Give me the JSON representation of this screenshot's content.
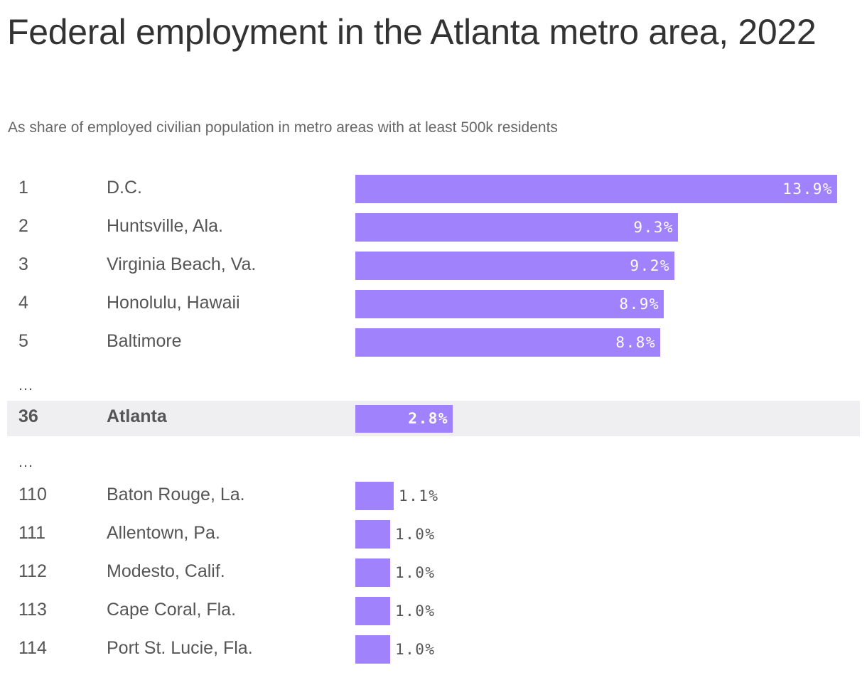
{
  "chart_data": {
    "type": "bar",
    "orientation": "horizontal",
    "title": "Federal employment in the Atlanta metro area, 2022",
    "subtitle": "As share of employed civilian population in metro areas with at least 500k residents",
    "value_suffix": "%",
    "max_value": 13.9,
    "highlight": "Atlanta",
    "ellipsis_label": "…",
    "rows": [
      {
        "rank": "1",
        "name": "D.C.",
        "value": 13.9,
        "label": "13.9%"
      },
      {
        "rank": "2",
        "name": "Huntsville, Ala.",
        "value": 9.3,
        "label": "9.3%"
      },
      {
        "rank": "3",
        "name": "Virginia Beach, Va.",
        "value": 9.2,
        "label": "9.2%"
      },
      {
        "rank": "4",
        "name": "Honolulu, Hawaii",
        "value": 8.9,
        "label": "8.9%"
      },
      {
        "rank": "5",
        "name": "Baltimore",
        "value": 8.8,
        "label": "8.8%"
      },
      {
        "ellipsis": true
      },
      {
        "rank": "36",
        "name": "Atlanta",
        "value": 2.8,
        "label": "2.8%",
        "highlight": true
      },
      {
        "ellipsis": true
      },
      {
        "rank": "110",
        "name": "Baton Rouge, La.",
        "value": 1.1,
        "label": "1.1%"
      },
      {
        "rank": "111",
        "name": "Allentown, Pa.",
        "value": 1.0,
        "label": "1.0%"
      },
      {
        "rank": "112",
        "name": "Modesto, Calif.",
        "value": 1.0,
        "label": "1.0%"
      },
      {
        "rank": "113",
        "name": "Cape Coral, Fla.",
        "value": 1.0,
        "label": "1.0%"
      },
      {
        "rank": "114",
        "name": "Port St. Lucie, Fla.",
        "value": 1.0,
        "label": "1.0%"
      }
    ],
    "bar_color": "#a182fd",
    "highlight_row_color": "#efeff1"
  }
}
